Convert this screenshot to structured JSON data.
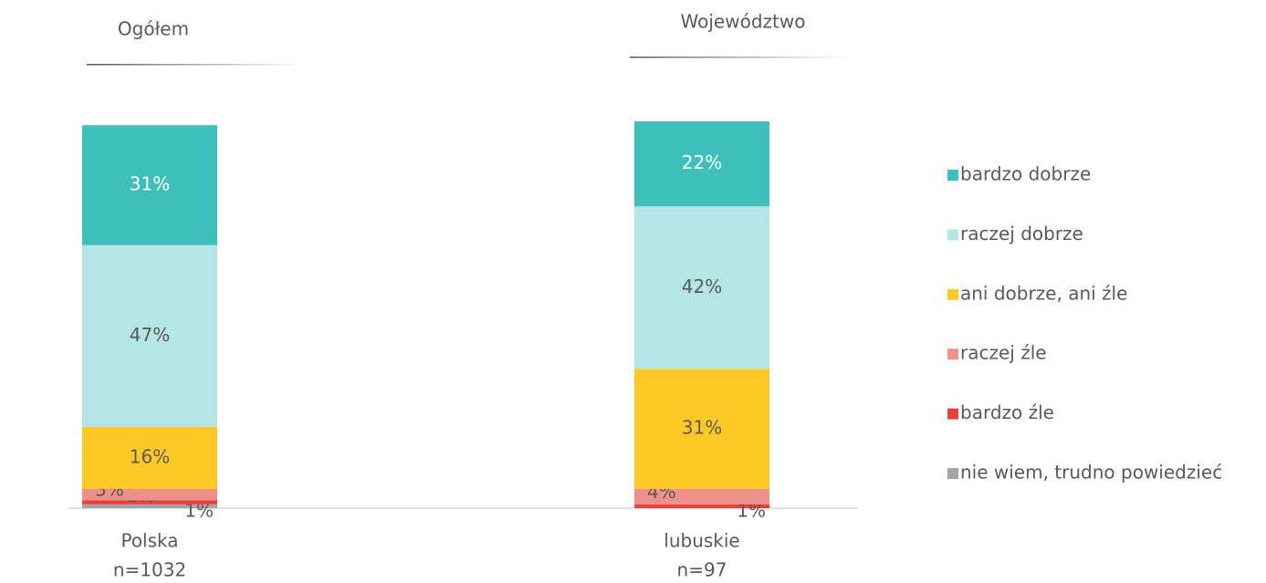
{
  "chart_data": {
    "type": "stacked_bar",
    "headers": [
      "Ogółem",
      "Województwo"
    ],
    "categories": [
      "Polska",
      "lubuskie"
    ],
    "sample_sizes": [
      "n=1032",
      "n=97"
    ],
    "ylim": [
      0,
      100
    ],
    "series": [
      {
        "name": "bardzo dobrze",
        "color": "#3fbfbc",
        "values": [
          31,
          22
        ],
        "value_labels": [
          "31%",
          "22%"
        ]
      },
      {
        "name": "raczej dobrze",
        "color": "#b3e6e4",
        "values": [
          47,
          42
        ],
        "value_labels": [
          "47%",
          "42%"
        ]
      },
      {
        "name": "ani dobrze, ani źle",
        "color": "#fec926",
        "values": [
          16,
          31
        ],
        "value_labels": [
          "16%",
          "31%"
        ]
      },
      {
        "name": "raczej źle",
        "color": "#f0908a",
        "values": [
          3,
          4
        ],
        "value_labels": [
          "3%",
          "4%"
        ]
      },
      {
        "name": "bardzo źle",
        "color": "#e8413a",
        "values": [
          1,
          1
        ],
        "value_labels": [
          "1%",
          "1%"
        ]
      },
      {
        "name": "nie wiem, trudno powiedzieć",
        "color": "#a5a5a5",
        "values": [
          1,
          0
        ],
        "value_labels": [
          "1%",
          null
        ]
      }
    ],
    "legend": "right"
  }
}
